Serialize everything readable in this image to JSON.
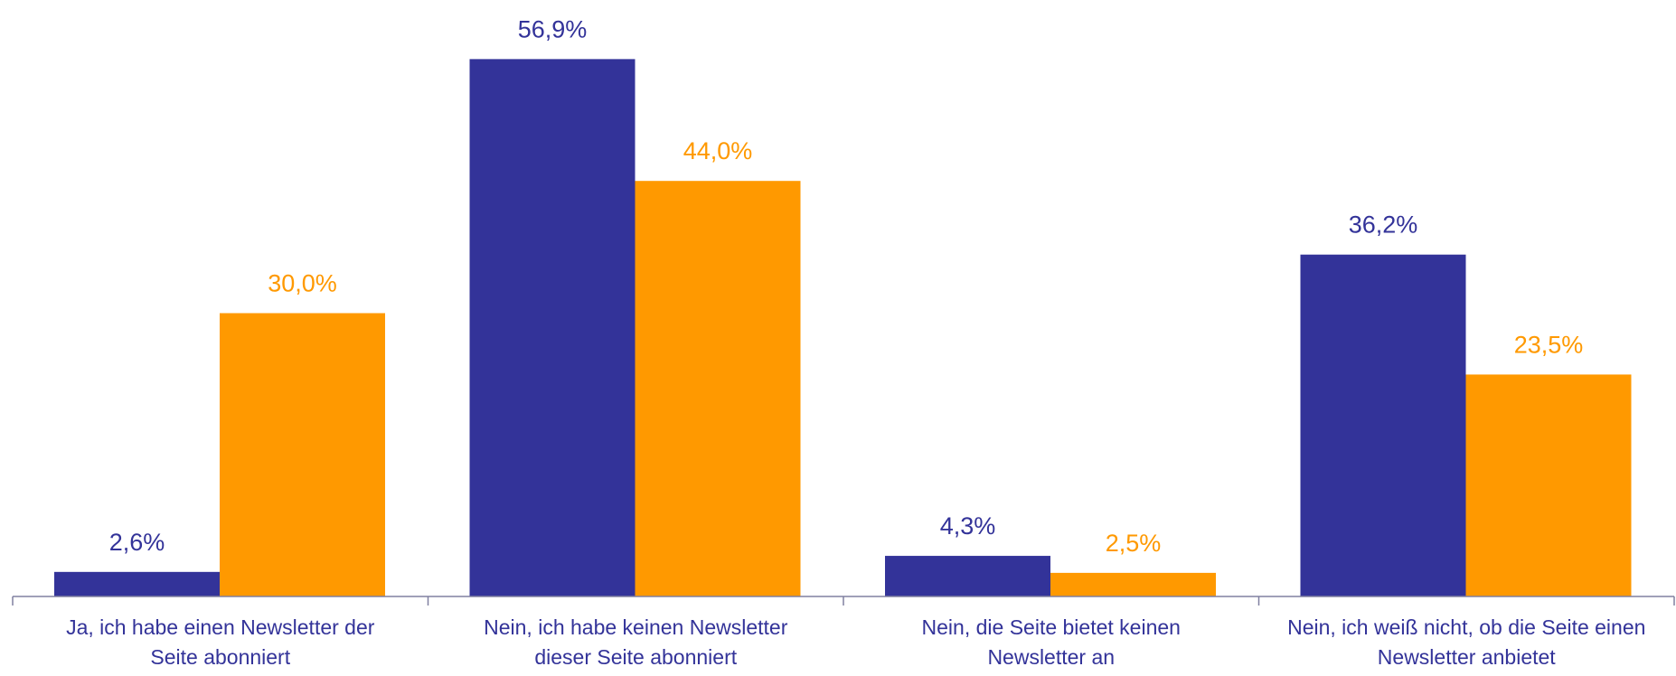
{
  "chart_data": {
    "type": "bar",
    "categories": [
      "Ja, ich habe einen Newsletter der Seite abonniert",
      "Nein, ich habe keinen Newsletter dieser Seite abonniert",
      "Nein, die Seite bietet keinen Newsletter an",
      "Nein, ich weiß nicht, ob die Seite einen Newsletter anbietet"
    ],
    "series": [
      {
        "color": "#333399",
        "values": [
          2.6,
          56.9,
          4.3,
          36.2
        ],
        "value_labels": [
          "2,6%",
          "56,9%",
          "4,3%",
          "36,2%"
        ]
      },
      {
        "color": "#ff9900",
        "values": [
          30.0,
          44.0,
          2.5,
          23.5
        ],
        "value_labels": [
          "30,0%",
          "44,0%",
          "2,5%",
          "23,5%"
        ]
      }
    ],
    "ylim": [
      0,
      60
    ]
  }
}
